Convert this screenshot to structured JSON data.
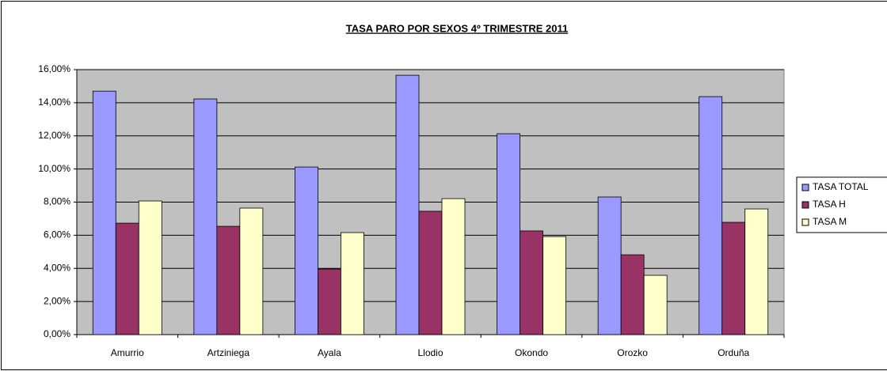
{
  "chart_data": {
    "type": "bar",
    "title": "TASA PARO POR SEXOS 4º TRIMESTRE 2011",
    "categories": [
      "Amurrio",
      "Artziniega",
      "Ayala",
      "Llodio",
      "Okondo",
      "Orozko",
      "Orduña"
    ],
    "series": [
      {
        "name": "TASA TOTAL",
        "color": "#9999ff",
        "values": [
          14.7,
          14.23,
          10.12,
          15.66,
          12.13,
          8.31,
          14.37
        ]
      },
      {
        "name": "TASA H",
        "color": "#993366",
        "values": [
          6.73,
          6.54,
          3.96,
          7.45,
          6.26,
          4.82,
          6.78
        ]
      },
      {
        "name": "TASA M",
        "color": "#ffffcc",
        "values": [
          8.07,
          7.64,
          6.16,
          8.21,
          5.92,
          3.58,
          7.59
        ]
      }
    ],
    "ylim": [
      0,
      16
    ],
    "yticks": [
      {
        "value": 0,
        "label": "0,00%"
      },
      {
        "value": 2,
        "label": "2,00%"
      },
      {
        "value": 4,
        "label": "4,00%"
      },
      {
        "value": 6,
        "label": "6,00%"
      },
      {
        "value": 8,
        "label": "8,00%"
      },
      {
        "value": 10,
        "label": "10,00%"
      },
      {
        "value": 12,
        "label": "12,00%"
      },
      {
        "value": 14,
        "label": "14,00%"
      },
      {
        "value": 16,
        "label": "16,00%"
      }
    ],
    "grid": true,
    "plot_background": "#c0c0c0",
    "legend": "right"
  }
}
